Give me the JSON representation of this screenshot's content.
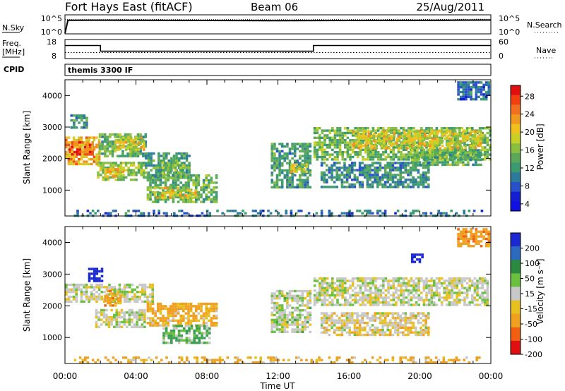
{
  "header": {
    "title": "Fort Hays East (fitACF)",
    "beam": "Beam 06",
    "date": "25/Aug/2011"
  },
  "info_panels": {
    "nsky_label": "N.Sky",
    "nsearch_label": "N.Search",
    "noise_ticks": [
      "10^5",
      "10^0"
    ],
    "freq_label_1": "Freq.",
    "freq_label_2": "[MHz]",
    "freq_ticks": [
      "18",
      "8"
    ],
    "nave_label": "Nave",
    "nave_ticks": [
      "60",
      "0"
    ],
    "cpid_label": "CPID",
    "cpid_value": "themis 3300 IF"
  },
  "colorbars": {
    "power": {
      "label": "Power [dB]",
      "ticks": [
        "28",
        "24",
        "20",
        "16",
        "12",
        "8",
        "4"
      ]
    },
    "velocity": {
      "label": "Velocity [m s⁻¹]",
      "ticks": [
        "200",
        "100",
        "50",
        "15",
        "-15",
        "-50",
        "-100",
        "-200"
      ]
    }
  },
  "chart_data": [
    {
      "type": "line",
      "title": "Fort Hays East (fitACF) Beam 06 25/Aug/2011",
      "panel": "noise",
      "y_left_label": "N.Sky",
      "y_right_label": "N.Search",
      "ylim": [
        1,
        100000
      ],
      "y_scale": "log",
      "xlim": [
        "00:00",
        "24:00"
      ],
      "series": [
        {
          "name": "N.Sky",
          "x": [
            "00:00",
            "00:10",
            "02:00",
            "04:00",
            "06:00",
            "08:00",
            "10:00",
            "12:00",
            "14:00",
            "16:00",
            "18:00",
            "20:00",
            "22:00",
            "24:00"
          ],
          "values": [
            1,
            4500,
            4800,
            4500,
            4300,
            4000,
            3700,
            3600,
            3800,
            3900,
            4100,
            4300,
            4600,
            5200
          ]
        },
        {
          "name": "N.Search",
          "x": [
            "00:00",
            "04:00",
            "08:00",
            "12:00",
            "16:00",
            "20:00",
            "24:00"
          ],
          "values": [
            7000,
            7500,
            7000,
            6800,
            7200,
            7600,
            9000
          ]
        }
      ]
    },
    {
      "type": "line",
      "panel": "frequency",
      "y_left_label": "Freq. [MHz]",
      "y_right_label": "Nave",
      "ylim_left": [
        8,
        18
      ],
      "ylim_right": [
        0,
        60
      ],
      "series": [
        {
          "name": "Freq.",
          "x": [
            "00:00",
            "02:00",
            "02:00",
            "14:00",
            "14:00",
            "24:00"
          ],
          "values": [
            15.0,
            15.0,
            11.8,
            11.8,
            15.0,
            15.0
          ]
        },
        {
          "name": "Nave",
          "x": [
            "00:00",
            "24:00"
          ],
          "values": [
            18,
            18
          ]
        }
      ]
    },
    {
      "type": "heatmap",
      "panel": "power",
      "xlabel": "",
      "ylabel": "Slant Range [km]",
      "xlim": [
        "00:00",
        "24:00"
      ],
      "ylim": [
        180,
        4500
      ],
      "x_ticks": [
        "00:00",
        "04:00",
        "08:00",
        "12:00",
        "16:00",
        "20:00",
        "00:00"
      ],
      "y_ticks": [
        1000,
        2000,
        3000,
        4000
      ],
      "colorbar": {
        "label": "Power [dB]",
        "range": [
          0,
          30
        ]
      },
      "regions": [
        {
          "t0": 0.0,
          "t1": 1.9,
          "r0": 1800,
          "r1": 2700,
          "value": 22
        },
        {
          "t0": 0.2,
          "t1": 1.5,
          "r0": 2100,
          "r1": 2550,
          "value": 27
        },
        {
          "t0": 0.3,
          "t1": 1.2,
          "r0": 2950,
          "r1": 3400,
          "value": 9
        },
        {
          "t0": 1.9,
          "t1": 4.6,
          "r0": 2100,
          "r1": 2800,
          "value": 12
        },
        {
          "t0": 2.8,
          "t1": 4.4,
          "r0": 2300,
          "r1": 2700,
          "value": 19
        },
        {
          "t0": 1.8,
          "t1": 4.4,
          "r0": 1300,
          "r1": 1900,
          "value": 15
        },
        {
          "t0": 2.2,
          "t1": 3.3,
          "r0": 1400,
          "r1": 1700,
          "value": 21
        },
        {
          "t0": 4.5,
          "t1": 7.0,
          "r0": 1400,
          "r1": 2200,
          "value": 10
        },
        {
          "t0": 5.3,
          "t1": 6.6,
          "r0": 1500,
          "r1": 1900,
          "value": 14
        },
        {
          "t0": 4.6,
          "t1": 8.6,
          "r0": 650,
          "r1": 1500,
          "value": 12
        },
        {
          "t0": 5.0,
          "t1": 7.4,
          "r0": 750,
          "r1": 1100,
          "value": 18
        },
        {
          "t0": 11.6,
          "t1": 13.8,
          "r0": 1100,
          "r1": 2500,
          "value": 9
        },
        {
          "t0": 12.7,
          "t1": 13.6,
          "r0": 1550,
          "r1": 1850,
          "value": 18
        },
        {
          "t0": 14.0,
          "t1": 23.9,
          "r0": 2000,
          "r1": 3000,
          "value": 13
        },
        {
          "t0": 16.2,
          "t1": 23.5,
          "r0": 2350,
          "r1": 2900,
          "value": 19
        },
        {
          "t0": 19.5,
          "t1": 23.5,
          "r0": 1800,
          "r1": 2300,
          "value": 12
        },
        {
          "t0": 14.4,
          "t1": 20.5,
          "r0": 1100,
          "r1": 1900,
          "value": 8
        },
        {
          "t0": 22.1,
          "t1": 23.9,
          "r0": 3900,
          "r1": 4450,
          "value": 6
        },
        {
          "t0": 0.5,
          "t1": 23.5,
          "r0": 180,
          "r1": 380,
          "value": 6
        }
      ]
    },
    {
      "type": "heatmap",
      "panel": "velocity",
      "xlabel": "Time UT",
      "ylabel": "Slant Range [km]",
      "xlim": [
        "00:00",
        "24:00"
      ],
      "ylim": [
        180,
        4500
      ],
      "x_ticks": [
        "00:00",
        "04:00",
        "08:00",
        "12:00",
        "16:00",
        "20:00",
        "00:00"
      ],
      "y_ticks": [
        1000,
        2000,
        3000,
        4000
      ],
      "colorbar": {
        "label": "Velocity [m s⁻¹]",
        "range": [
          -200,
          200
        ]
      },
      "regions": [
        {
          "t0": 0.0,
          "t1": 5.0,
          "r0": 2100,
          "r1": 2700,
          "value": 0
        },
        {
          "t0": 1.7,
          "t1": 4.5,
          "r0": 1300,
          "r1": 1900,
          "value": 0
        },
        {
          "t0": 1.3,
          "t1": 2.1,
          "r0": 2800,
          "r1": 3200,
          "value": 180
        },
        {
          "t0": 2.2,
          "t1": 3.2,
          "r0": 2000,
          "r1": 2500,
          "value": -50
        },
        {
          "t0": 4.6,
          "t1": 8.5,
          "r0": 1400,
          "r1": 2100,
          "value": -40
        },
        {
          "t0": 5.5,
          "t1": 8.2,
          "r0": 850,
          "r1": 1400,
          "value": 30
        },
        {
          "t0": 11.6,
          "t1": 13.8,
          "r0": 1200,
          "r1": 2500,
          "value": 5
        },
        {
          "t0": 14.0,
          "t1": 23.8,
          "r0": 2000,
          "r1": 2900,
          "value": 0
        },
        {
          "t0": 14.4,
          "t1": 20.5,
          "r0": 1100,
          "r1": 1800,
          "value": -10
        },
        {
          "t0": 19.5,
          "t1": 20.2,
          "r0": 3350,
          "r1": 3650,
          "value": 190
        },
        {
          "t0": 22.1,
          "t1": 23.9,
          "r0": 3900,
          "r1": 4450,
          "value": -60
        },
        {
          "t0": 0.5,
          "t1": 23.5,
          "r0": 180,
          "r1": 400,
          "value": -40
        }
      ]
    }
  ],
  "axes": {
    "x_ticks": [
      "00:00",
      "04:00",
      "08:00",
      "12:00",
      "16:00",
      "20:00",
      "00:00"
    ],
    "xlabel": "Time UT",
    "ylabel": "Slant Range [km]",
    "y_ticks": [
      "1000",
      "2000",
      "3000",
      "4000"
    ]
  }
}
